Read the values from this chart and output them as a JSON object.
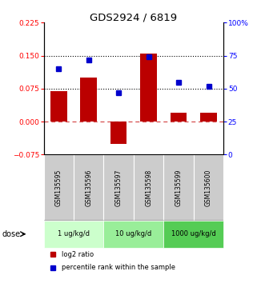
{
  "title": "GDS2924 / 6819",
  "categories": [
    "GSM135595",
    "GSM135596",
    "GSM135597",
    "GSM135598",
    "GSM135599",
    "GSM135600"
  ],
  "bar_values": [
    0.07,
    0.1,
    -0.05,
    0.155,
    0.02,
    0.02
  ],
  "blue_values": [
    65,
    72,
    47,
    74,
    55,
    52
  ],
  "bar_color": "#bb0000",
  "blue_color": "#0000cc",
  "ylim_left": [
    -0.075,
    0.225
  ],
  "ylim_right": [
    0,
    100
  ],
  "yticks_left": [
    -0.075,
    0,
    0.075,
    0.15,
    0.225
  ],
  "yticks_right": [
    0,
    25,
    50,
    75,
    100
  ],
  "hlines": [
    0.075,
    0.15
  ],
  "zero_line": 0.0,
  "dose_groups": [
    {
      "label": "1 ug/kg/d",
      "start": 0,
      "end": 2,
      "color": "#ccffcc"
    },
    {
      "label": "10 ug/kg/d",
      "start": 2,
      "end": 4,
      "color": "#99ee99"
    },
    {
      "label": "1000 ug/kg/d",
      "start": 4,
      "end": 6,
      "color": "#55cc55"
    }
  ],
  "dose_label": "dose",
  "legend_items": [
    {
      "label": "log2 ratio",
      "color": "#bb0000"
    },
    {
      "label": "percentile rank within the sample",
      "color": "#0000cc"
    }
  ],
  "sample_bg_color": "#cccccc",
  "xlabels_area_color": "#cccccc"
}
